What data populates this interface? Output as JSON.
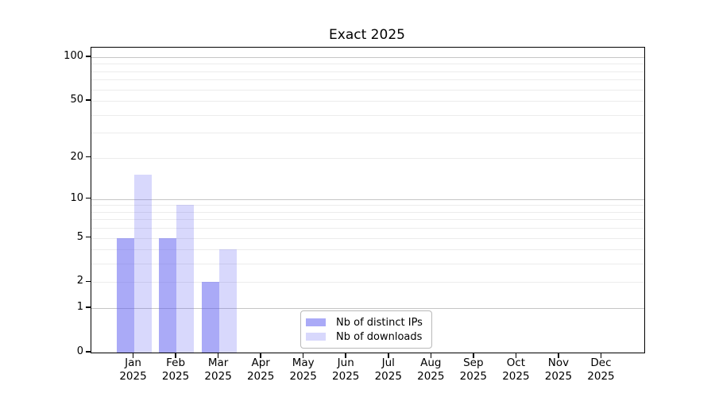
{
  "title": "Exact 2025",
  "chart_data": {
    "type": "bar",
    "title": "Exact 2025",
    "categories": [
      "Jan 2025",
      "Feb 2025",
      "Mar 2025",
      "Apr 2025",
      "May 2025",
      "Jun 2025",
      "Jul 2025",
      "Aug 2025",
      "Sep 2025",
      "Oct 2025",
      "Nov 2025",
      "Dec 2025"
    ],
    "series": [
      {
        "name": "Nb of distinct IPs",
        "base_color": "#5858f0",
        "alpha": 0.51,
        "values": [
          5,
          5,
          2,
          0,
          0,
          0,
          0,
          0,
          0,
          0,
          0,
          0
        ]
      },
      {
        "name": "Nb of downloads",
        "base_color": "#5858f0",
        "alpha": 0.23,
        "values": [
          15,
          9,
          4,
          0,
          0,
          0,
          0,
          0,
          0,
          0,
          0,
          0
        ]
      }
    ],
    "xlabel": "",
    "ylabel": "",
    "yscale": "log1p",
    "ylim": [
      0,
      116
    ],
    "y_ticks": [
      0,
      1,
      2,
      5,
      10,
      20,
      50,
      100
    ],
    "y_major_gridlines": [
      1,
      10,
      100
    ],
    "y_minor_gridlines": [
      2,
      3,
      4,
      5,
      6,
      7,
      8,
      9,
      20,
      30,
      40,
      50,
      60,
      70,
      80,
      90
    ],
    "grid": "on",
    "legend_position": "bottom-center",
    "colors": {
      "spine": "#000000",
      "major_grid": "#c6c6c6",
      "minor_grid": "#ececec",
      "bar_distinct_ips_rendered": "#aaaaf4",
      "bar_downloads_rendered": "#d9d9fa",
      "text": "#000000"
    }
  }
}
